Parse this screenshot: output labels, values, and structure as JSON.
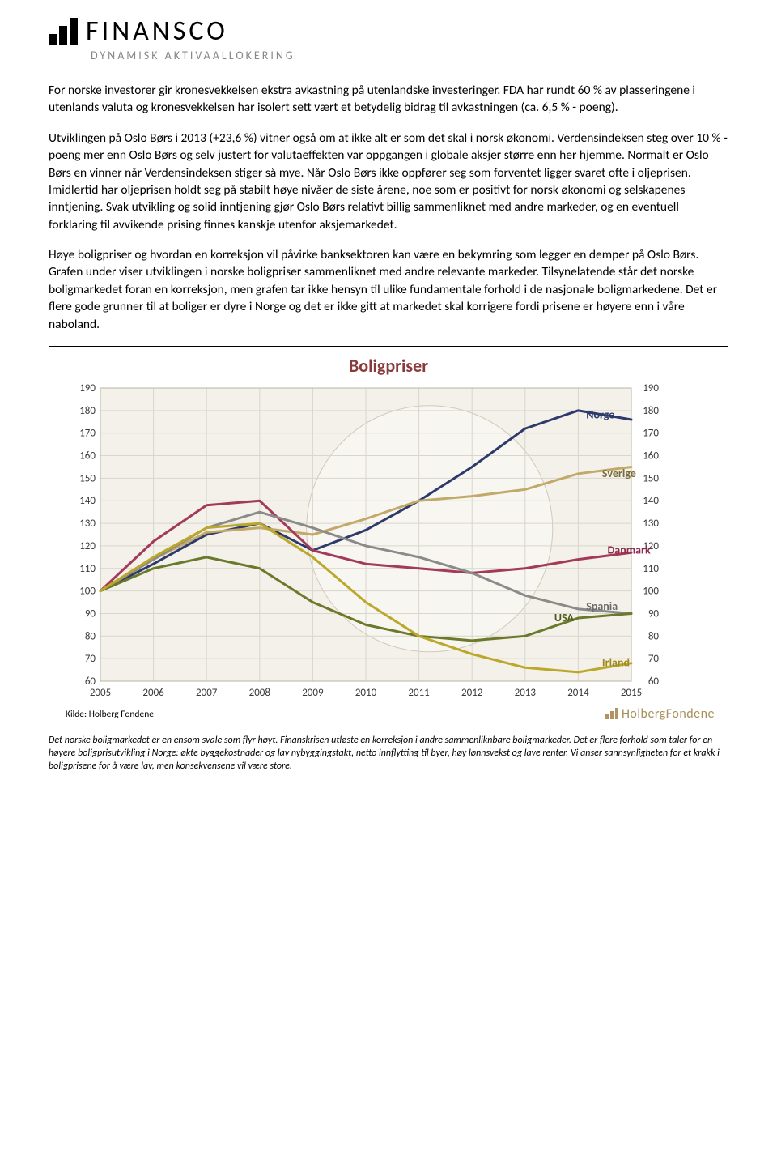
{
  "logo": {
    "brand": "FINANSCO",
    "tagline": "DYNAMISK AKTIVAALLOKERING"
  },
  "paragraphs": {
    "p1": "For norske investorer gir kronesvekkelsen ekstra avkastning på utenlandske investeringer. FDA har rundt 60 % av plasseringene i utenlands valuta og kronesvekkelsen har isolert sett vært et betydelig bidrag til avkastningen (ca. 6,5 % - poeng).",
    "p2": "Utviklingen på Oslo Børs i 2013 (+23,6 %) vitner også om at ikke alt er som det skal i norsk økonomi. Verdensindeksen steg over 10 % - poeng mer enn Oslo Børs og selv justert for valutaeffekten var oppgangen i globale aksjer større enn her hjemme. Normalt er Oslo Børs en vinner når Verdensindeksen stiger så mye. Når Oslo Børs ikke oppfører seg som forventet ligger svaret ofte i oljeprisen. Imidlertid har oljeprisen holdt seg på stabilt høye nivåer de siste årene, noe som er positivt for norsk økonomi og selskapenes inntjening. Svak utvikling og solid inntjening gjør Oslo Børs relativt billig sammenliknet med andre markeder, og en eventuell forklaring til avvikende prising finnes kanskje utenfor aksjemarkedet.",
    "p3": "Høye boligpriser og hvordan en korreksjon vil påvirke banksektoren kan være en bekymring som legger en demper på Oslo Børs. Grafen under viser utviklingen i norske boligpriser sammenliknet med andre relevante markeder. Tilsynelatende står det norske boligmarkedet foran en korreksjon, men grafen tar ikke hensyn til ulike fundamentale forhold i de nasjonale boligmarkedene. Det er flere gode grunner til at boliger er dyre i Norge og det er ikke gitt at markedet skal korrigere fordi prisene er høyere enn i våre naboland."
  },
  "chart": {
    "type": "line",
    "title": "Boligpriser",
    "title_color": "#8a3a3a",
    "background_color": "#f3f1ea",
    "grid_color": "#d9d6cb",
    "axis_text_color": "#3a3a3a",
    "ylim": [
      60,
      190
    ],
    "ytick_step": 10,
    "x_labels": [
      "2005",
      "2006",
      "2007",
      "2008",
      "2009",
      "2010",
      "2011",
      "2012",
      "2013",
      "2014",
      "2015"
    ],
    "line_width": 3,
    "series": [
      {
        "name": "Norge",
        "label_color": "#2e3a6b",
        "color": "#2e3a6b",
        "data": [
          100,
          112,
          125,
          130,
          118,
          127,
          140,
          155,
          172,
          180,
          176
        ]
      },
      {
        "name": "Sverige",
        "label_color": "#7a6b3a",
        "color": "#c2a96a",
        "data": [
          100,
          114,
          126,
          128,
          125,
          132,
          140,
          142,
          145,
          152,
          155
        ]
      },
      {
        "name": "Danmark",
        "label_color": "#8a2a4a",
        "color": "#a43a5a",
        "data": [
          100,
          122,
          138,
          140,
          118,
          112,
          110,
          108,
          110,
          114,
          117
        ]
      },
      {
        "name": "Spania",
        "label_color": "#6a6a6a",
        "color": "#8a8a8a",
        "data": [
          100,
          114,
          128,
          135,
          128,
          120,
          115,
          108,
          98,
          92,
          90
        ]
      },
      {
        "name": "USA",
        "label_color": "#4a5a1a",
        "color": "#6a7a2a",
        "data": [
          100,
          110,
          115,
          110,
          95,
          85,
          80,
          78,
          80,
          88,
          90
        ]
      },
      {
        "name": "Irland",
        "label_color": "#a08a1a",
        "color": "#bba82a",
        "data": [
          100,
          115,
          128,
          130,
          115,
          95,
          80,
          72,
          66,
          64,
          68
        ]
      }
    ],
    "series_label_positions": {
      "Norge": [
        9.15,
        178
      ],
      "Sverige": [
        9.45,
        152
      ],
      "Danmark": [
        9.55,
        118
      ],
      "Spania": [
        9.15,
        93
      ],
      "USA": [
        8.55,
        88
      ],
      "Irland": [
        9.45,
        68
      ]
    },
    "source": "Kilde: Holberg Fondene",
    "watermark": "HolbergFondene"
  },
  "caption": "Det norske boligmarkedet er en ensom svale som flyr høyt. Finanskrisen utløste en korreksjon i andre sammenliknbare boligmarkeder. Det er flere forhold som taler for en høyere boligprisutvikling i Norge: økte byggekostnader og lav nybyggingstakt, netto innflytting til byer, høy lønnsvekst og lave renter. Vi anser sannsynligheten for et krakk i boligprisene for å være lav, men konsekvensene vil være store."
}
